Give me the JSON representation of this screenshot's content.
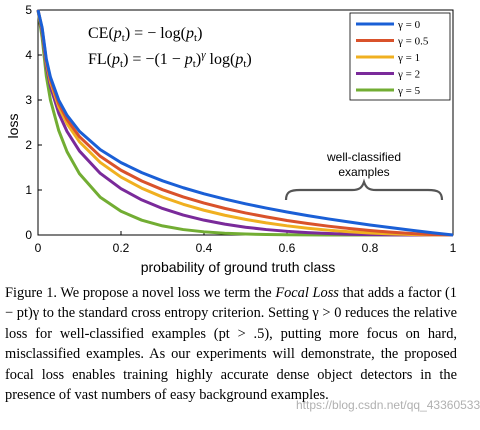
{
  "chart_data": {
    "type": "line",
    "xlabel": "probability of ground truth class",
    "ylabel": "loss",
    "xlim": [
      0,
      1
    ],
    "ylim": [
      0,
      5
    ],
    "x_ticks": [
      "0",
      "0.2",
      "0.4",
      "0.6",
      "0.8",
      "1"
    ],
    "y_ticks": [
      "0",
      "1",
      "2",
      "3",
      "4",
      "5"
    ],
    "x": [
      0.01,
      0.02,
      0.03,
      0.05,
      0.07,
      0.1,
      0.15,
      0.2,
      0.25,
      0.3,
      0.35,
      0.4,
      0.45,
      0.5,
      0.55,
      0.6,
      0.65,
      0.7,
      0.75,
      0.8,
      0.85,
      0.9,
      0.95,
      1.0
    ],
    "series": [
      {
        "name": "γ = 0",
        "color": "#1a5fd6",
        "values": [
          4.605,
          3.912,
          3.507,
          2.996,
          2.659,
          2.303,
          1.897,
          1.609,
          1.386,
          1.204,
          1.05,
          0.916,
          0.799,
          0.693,
          0.598,
          0.511,
          0.431,
          0.357,
          0.288,
          0.223,
          0.163,
          0.105,
          0.051,
          0.0
        ]
      },
      {
        "name": "γ = 0.5",
        "color": "#d9522b",
        "values": [
          4.582,
          3.873,
          3.454,
          2.92,
          2.565,
          2.184,
          1.749,
          1.439,
          1.2,
          1.007,
          0.846,
          0.71,
          0.592,
          0.49,
          0.403,
          0.323,
          0.255,
          0.196,
          0.144,
          0.1,
          0.063,
          0.033,
          0.011,
          0.0
        ]
      },
      {
        "name": "γ = 1",
        "color": "#f0b020",
        "values": [
          4.559,
          3.834,
          3.402,
          2.846,
          2.473,
          2.072,
          1.612,
          1.288,
          1.04,
          0.843,
          0.683,
          0.55,
          0.439,
          0.347,
          0.269,
          0.204,
          0.151,
          0.107,
          0.072,
          0.045,
          0.024,
          0.011,
          0.003,
          0.0
        ]
      },
      {
        "name": "γ = 2",
        "color": "#7a2a9a",
        "values": [
          4.514,
          3.757,
          3.3,
          2.704,
          2.3,
          1.865,
          1.37,
          1.03,
          0.78,
          0.59,
          0.444,
          0.33,
          0.242,
          0.173,
          0.121,
          0.082,
          0.053,
          0.032,
          0.018,
          0.009,
          0.004,
          0.001,
          0.0,
          0.0
        ]
      },
      {
        "name": "γ = 5",
        "color": "#72ad33",
        "values": [
          4.381,
          3.534,
          3.0,
          2.32,
          1.85,
          1.36,
          0.84,
          0.527,
          0.329,
          0.202,
          0.121,
          0.071,
          0.04,
          0.022,
          0.011,
          0.005,
          0.002,
          0.001,
          0.0,
          0.0,
          0.0,
          0.0,
          0.0,
          0.0
        ]
      }
    ],
    "legend_position": "top-right",
    "formula_ce": "CE(pt) = − log(pt)",
    "formula_fl": "FL(pt) = −(1 − pt)γ log(pt)",
    "annotation": "well-classified examples"
  },
  "caption": {
    "label": "Figure 1.",
    "text_before": "We propose a novel loss we term the",
    "emphasis": "Focal Loss",
    "text_after": "that adds a factor (1 − pt)γ to the standard cross entropy criterion. Setting γ > 0 reduces the relative loss for well-classified examples (pt > .5), putting more focus on hard, misclassified examples. As our experiments will demonstrate, the proposed focal loss enables training highly accurate dense object detectors in the presence of vast numbers of easy background examples."
  },
  "watermark": "https://blog.csdn.net/qq_43360533"
}
